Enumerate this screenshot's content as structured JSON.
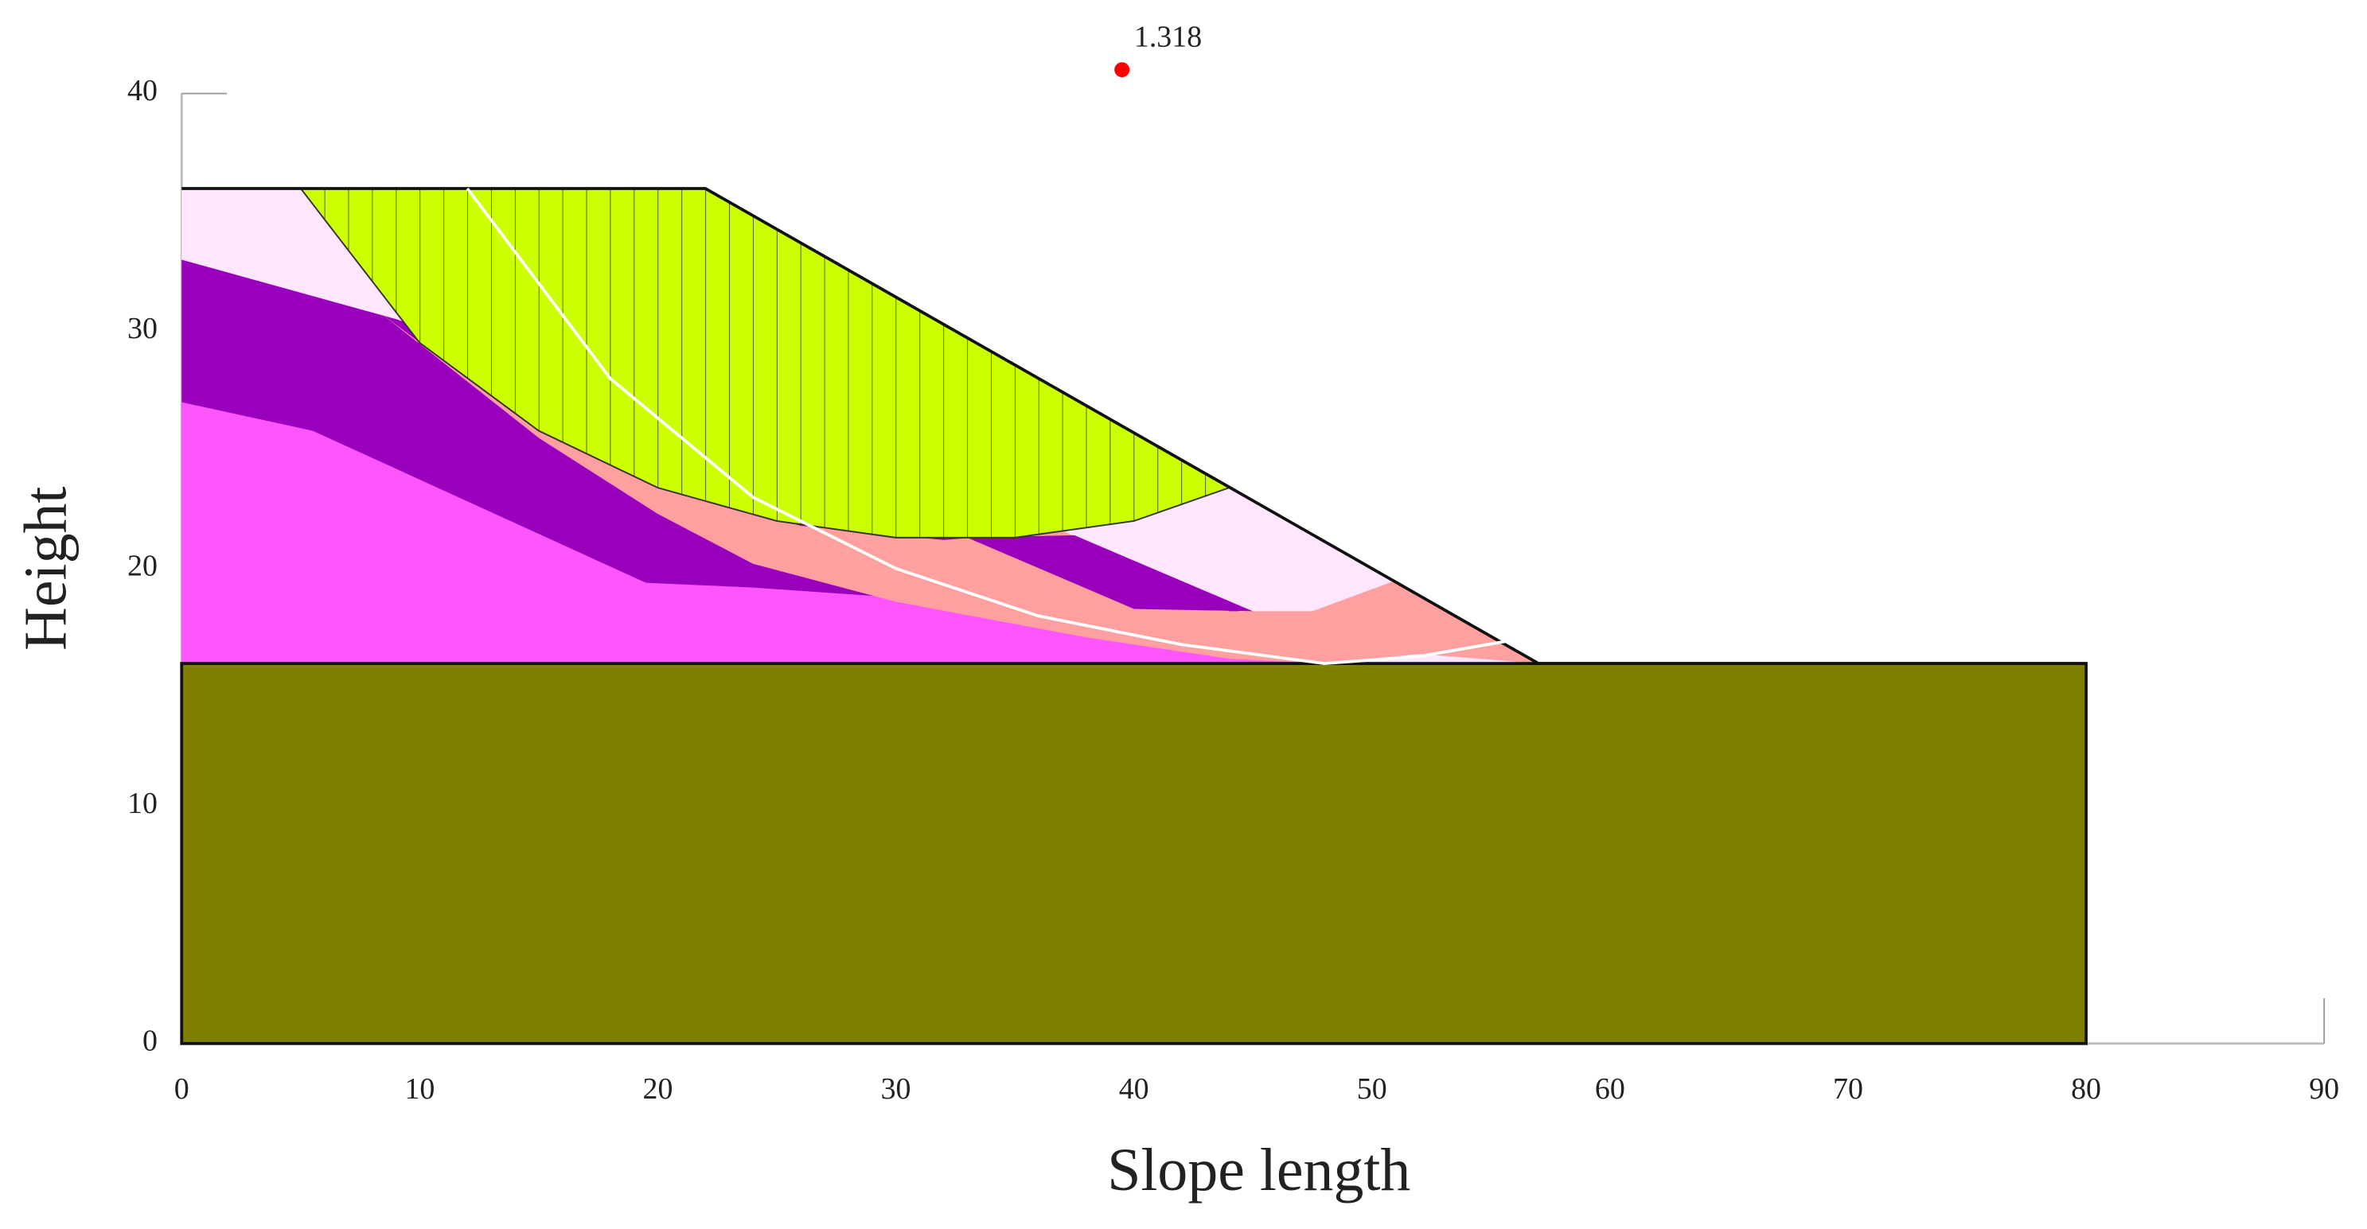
{
  "chart_data": {
    "type": "slope",
    "x_label": "Slope length",
    "y_label": "Height",
    "xlim": [
      0,
      90
    ],
    "ylim": [
      0,
      40
    ],
    "xticks": [
      0,
      10,
      20,
      30,
      40,
      50,
      60,
      70,
      80,
      90
    ],
    "yticks": [
      0,
      10,
      20,
      30,
      40
    ],
    "regions": [
      {
        "color": "#808000",
        "x": [
          0,
          80,
          80,
          0
        ],
        "y": [
          0,
          0,
          16,
          16
        ]
      },
      {
        "color": "#ffe6ff",
        "x": [
          0,
          22,
          57,
          0
        ],
        "y": [
          36,
          36,
          16,
          16
        ]
      },
      {
        "color": "#9900bb",
        "x": [
          0,
          9,
          45,
          48,
          0
        ],
        "y": [
          33,
          30.5,
          18,
          16,
          16
        ]
      },
      {
        "color": "#ff55ff",
        "x": [
          0,
          5.5,
          19.5,
          24,
          34,
          45,
          48,
          0
        ],
        "y": [
          27,
          25.8,
          19.4,
          19.2,
          18.5,
          17.2,
          16,
          16
        ]
      },
      {
        "color": "#ffa0a0",
        "x": [
          8.3,
          15,
          20,
          24,
          30,
          38,
          44,
          48,
          52,
          57,
          51,
          47.5,
          44,
          37,
          32,
          26,
          20,
          14
        ],
        "y": [
          30.8,
          25.5,
          22.3,
          20.2,
          18.6,
          17.1,
          16.2,
          16,
          16.4,
          16,
          19.5,
          18.2,
          18.2,
          21.6,
          21.2,
          21.8,
          23.5,
          26.5
        ]
      },
      {
        "color": "#9900bb",
        "x": [
          33,
          37.5,
          45,
          40
        ],
        "y": [
          21.3,
          21.4,
          18.2,
          18.3
        ]
      },
      {
        "color": "#ccff00",
        "x": [
          5,
          22,
          44,
          40,
          35,
          30,
          25,
          20,
          15,
          10
        ],
        "y": [
          36,
          36,
          23.4,
          22,
          21.3,
          21.3,
          22,
          23.4,
          25.8,
          29.5
        ]
      }
    ],
    "slope_surface": {
      "x": [
        0,
        22,
        57,
        80
      ],
      "y": [
        36,
        36,
        16,
        16
      ]
    },
    "critical_surface": {
      "color": "#ffffff",
      "x": [
        12,
        18,
        24,
        30,
        36,
        42,
        48,
        52,
        56
      ],
      "y": [
        36,
        28,
        23,
        20,
        18,
        16.8,
        16,
        16.3,
        17
      ]
    },
    "critical_center": {
      "x": 39.5,
      "y": 41,
      "value": 1.318,
      "color": "#ff0000"
    }
  }
}
